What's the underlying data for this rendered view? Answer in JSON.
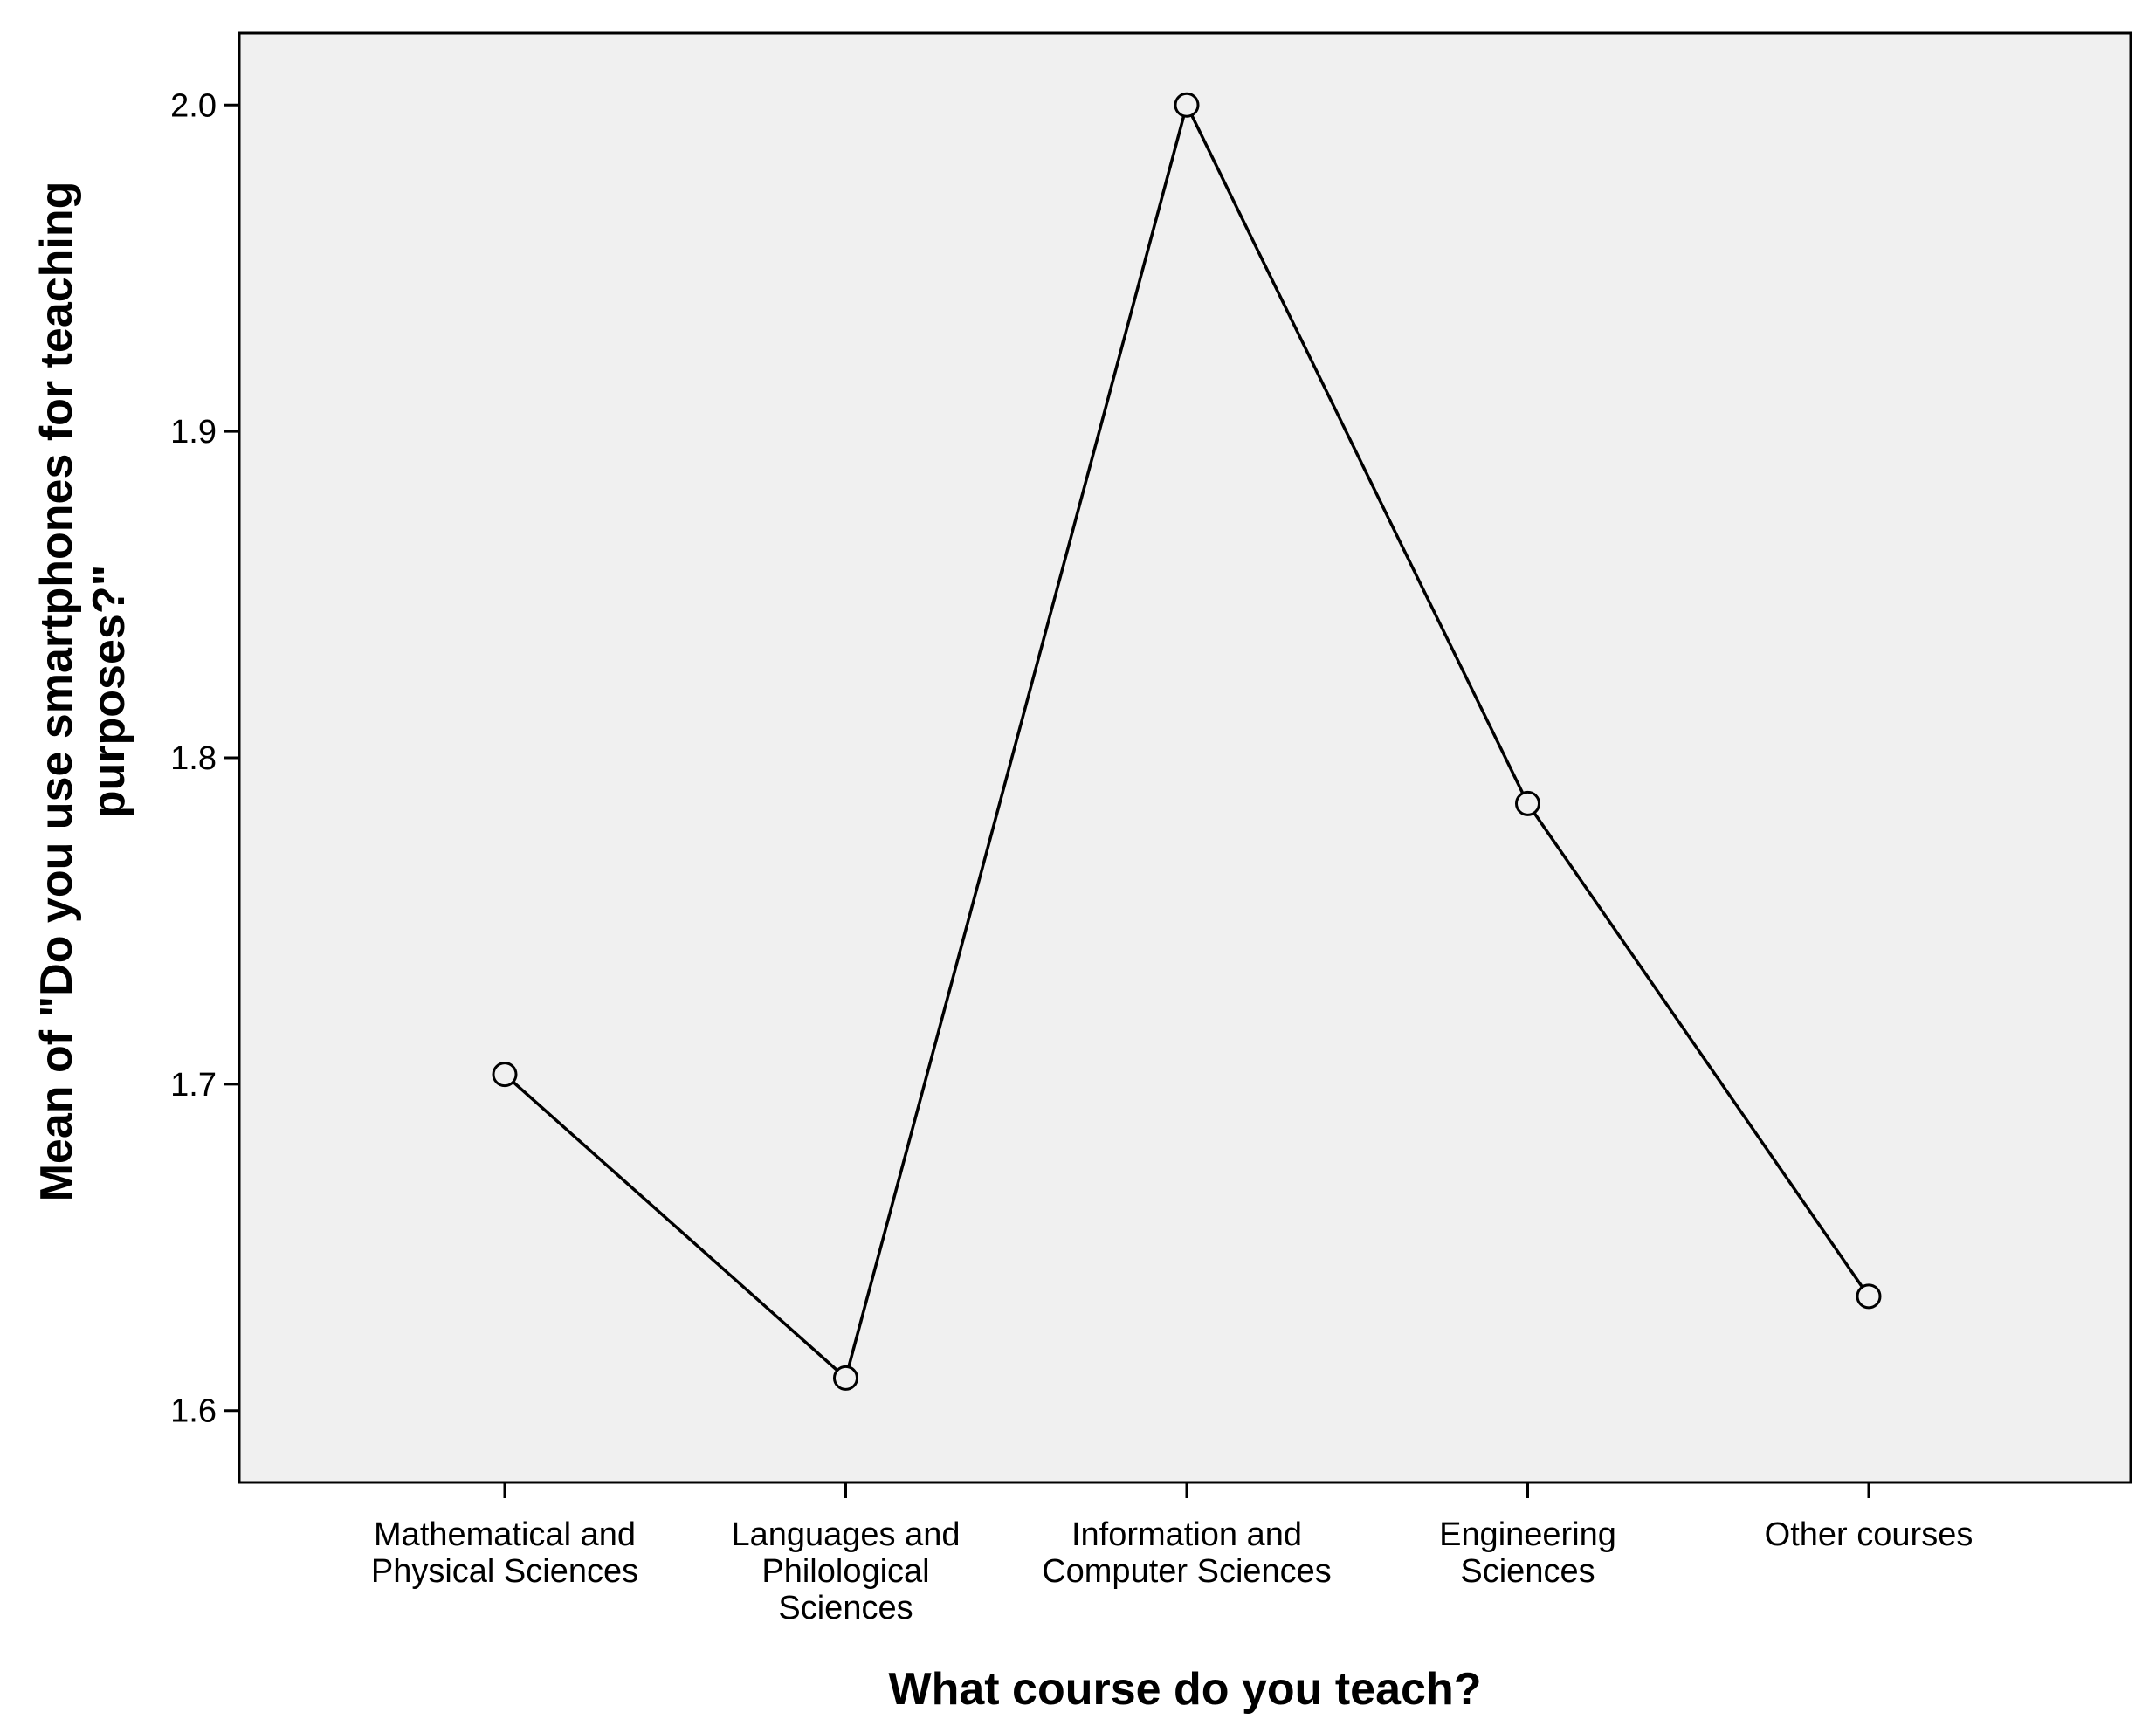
{
  "chart_data": {
    "type": "line",
    "categories": [
      [
        "Mathematical and",
        "Physical Sciences"
      ],
      [
        "Languages and",
        "Philological",
        "Sciences"
      ],
      [
        "Information and",
        "Computer Sciences"
      ],
      [
        "Engineering",
        "Sciences"
      ],
      [
        "Other courses"
      ]
    ],
    "values": [
      1.703,
      1.61,
      2.0,
      1.786,
      1.635
    ],
    "xlabel": "What course do you teach?",
    "ylabel": [
      "Mean of \"Do you use smartphones for teaching",
      "purposes?\""
    ],
    "yticks": [
      "1.6",
      "1.7",
      "1.8",
      "1.9",
      "2.0"
    ],
    "ylim": [
      1.578,
      2.022
    ],
    "grid": false,
    "legend": "none",
    "colors": {
      "plot_background": "#f0f0f0",
      "line": "#000000",
      "marker_fill": "#f0f0f0"
    }
  }
}
